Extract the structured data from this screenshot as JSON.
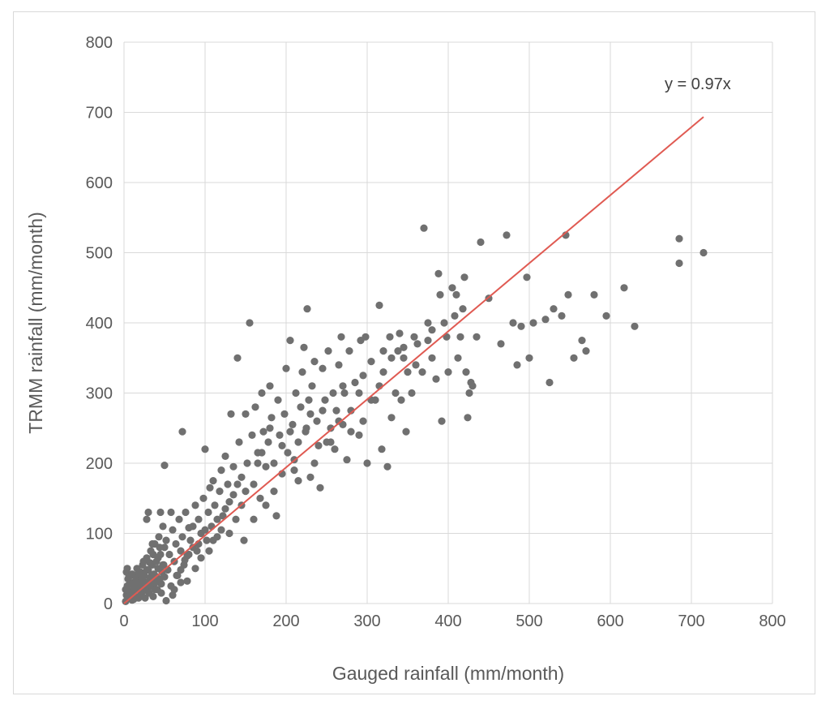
{
  "chart_data": {
    "type": "scatter",
    "title": "",
    "xlabel": "Gauged rainfall (mm/month)",
    "ylabel": "TRMM rainfall (mm/month)",
    "xlim": [
      0,
      800
    ],
    "ylim": [
      0,
      800
    ],
    "xticks": [
      "0",
      "100",
      "200",
      "300",
      "400",
      "500",
      "600",
      "700",
      "800"
    ],
    "yticks": [
      "0",
      "100",
      "200",
      "300",
      "400",
      "500",
      "600",
      "700",
      "800"
    ],
    "grid": true,
    "legend": "none",
    "point_color": "#707070",
    "trendline": {
      "label": "y = 0.97x",
      "slope": 0.97,
      "x_range": [
        0,
        715
      ],
      "color": "#e05a52"
    },
    "points": [
      [
        2,
        3
      ],
      [
        3,
        12
      ],
      [
        4,
        25
      ],
      [
        5,
        35
      ],
      [
        3,
        45
      ],
      [
        6,
        8
      ],
      [
        7,
        18
      ],
      [
        8,
        28
      ],
      [
        9,
        40
      ],
      [
        10,
        5
      ],
      [
        11,
        15
      ],
      [
        12,
        30
      ],
      [
        13,
        22
      ],
      [
        14,
        10
      ],
      [
        15,
        38
      ],
      [
        16,
        50
      ],
      [
        17,
        20
      ],
      [
        18,
        8
      ],
      [
        19,
        33
      ],
      [
        20,
        45
      ],
      [
        21,
        12
      ],
      [
        22,
        28
      ],
      [
        23,
        55
      ],
      [
        24,
        18
      ],
      [
        25,
        40
      ],
      [
        26,
        8
      ],
      [
        27,
        30
      ],
      [
        28,
        65
      ],
      [
        29,
        22
      ],
      [
        30,
        48
      ],
      [
        31,
        15
      ],
      [
        32,
        35
      ],
      [
        33,
        75
      ],
      [
        34,
        25
      ],
      [
        35,
        55
      ],
      [
        36,
        10
      ],
      [
        37,
        42
      ],
      [
        38,
        85
      ],
      [
        39,
        30
      ],
      [
        40,
        60
      ],
      [
        41,
        20
      ],
      [
        42,
        50
      ],
      [
        43,
        95
      ],
      [
        44,
        35
      ],
      [
        45,
        70
      ],
      [
        46,
        15
      ],
      [
        47,
        45
      ],
      [
        48,
        110
      ],
      [
        49,
        55
      ],
      [
        50,
        80
      ],
      [
        2,
        20
      ],
      [
        4,
        50
      ],
      [
        6,
        38
      ],
      [
        8,
        15
      ],
      [
        10,
        42
      ],
      [
        12,
        6
      ],
      [
        14,
        30
      ],
      [
        16,
        26
      ],
      [
        18,
        44
      ],
      [
        20,
        18
      ],
      [
        22,
        36
      ],
      [
        24,
        60
      ],
      [
        26,
        22
      ],
      [
        28,
        48
      ],
      [
        30,
        30
      ],
      [
        32,
        58
      ],
      [
        34,
        40
      ],
      [
        36,
        70
      ],
      [
        38,
        20
      ],
      [
        40,
        38
      ],
      [
        42,
        65
      ],
      [
        44,
        80
      ],
      [
        46,
        28
      ],
      [
        48,
        55
      ],
      [
        50,
        38
      ],
      [
        52,
        90
      ],
      [
        54,
        48
      ],
      [
        56,
        70
      ],
      [
        58,
        25
      ],
      [
        60,
        105
      ],
      [
        62,
        60
      ],
      [
        64,
        85
      ],
      [
        66,
        40
      ],
      [
        68,
        120
      ],
      [
        70,
        75
      ],
      [
        72,
        95
      ],
      [
        74,
        55
      ],
      [
        76,
        130
      ],
      [
        78,
        68
      ],
      [
        80,
        108
      ],
      [
        28,
        120
      ],
      [
        30,
        130
      ],
      [
        35,
        85
      ],
      [
        45,
        130
      ],
      [
        52,
        4
      ],
      [
        58,
        130
      ],
      [
        50,
        197
      ],
      [
        72,
        245
      ],
      [
        62,
        20
      ],
      [
        70,
        30
      ],
      [
        78,
        32
      ],
      [
        82,
        90
      ],
      [
        85,
        110
      ],
      [
        88,
        140
      ],
      [
        90,
        75
      ],
      [
        92,
        120
      ],
      [
        95,
        100
      ],
      [
        98,
        150
      ],
      [
        100,
        220
      ],
      [
        102,
        90
      ],
      [
        104,
        130
      ],
      [
        106,
        165
      ],
      [
        108,
        110
      ],
      [
        110,
        175
      ],
      [
        112,
        140
      ],
      [
        115,
        95
      ],
      [
        118,
        160
      ],
      [
        120,
        190
      ],
      [
        122,
        125
      ],
      [
        125,
        210
      ],
      [
        128,
        170
      ],
      [
        130,
        145
      ],
      [
        132,
        270
      ],
      [
        135,
        195
      ],
      [
        138,
        120
      ],
      [
        140,
        350
      ],
      [
        142,
        230
      ],
      [
        145,
        180
      ],
      [
        148,
        90
      ],
      [
        150,
        270
      ],
      [
        152,
        200
      ],
      [
        155,
        400
      ],
      [
        158,
        240
      ],
      [
        160,
        170
      ],
      [
        162,
        280
      ],
      [
        165,
        215
      ],
      [
        168,
        150
      ],
      [
        170,
        300
      ],
      [
        172,
        245
      ],
      [
        175,
        195
      ],
      [
        178,
        230
      ],
      [
        180,
        310
      ],
      [
        182,
        265
      ],
      [
        185,
        200
      ],
      [
        188,
        125
      ],
      [
        190,
        290
      ],
      [
        192,
        240
      ],
      [
        195,
        185
      ],
      [
        198,
        270
      ],
      [
        200,
        335
      ],
      [
        202,
        215
      ],
      [
        205,
        375
      ],
      [
        208,
        255
      ],
      [
        210,
        190
      ],
      [
        212,
        300
      ],
      [
        215,
        175
      ],
      [
        218,
        280
      ],
      [
        220,
        330
      ],
      [
        222,
        365
      ],
      [
        224,
        245
      ],
      [
        226,
        420
      ],
      [
        228,
        290
      ],
      [
        230,
        180
      ],
      [
        232,
        310
      ],
      [
        235,
        345
      ],
      [
        238,
        260
      ],
      [
        240,
        225
      ],
      [
        242,
        165
      ],
      [
        245,
        335
      ],
      [
        248,
        290
      ],
      [
        250,
        230
      ],
      [
        252,
        360
      ],
      [
        255,
        250
      ],
      [
        258,
        300
      ],
      [
        260,
        220
      ],
      [
        262,
        275
      ],
      [
        265,
        340
      ],
      [
        268,
        380
      ],
      [
        270,
        255
      ],
      [
        272,
        300
      ],
      [
        275,
        205
      ],
      [
        278,
        360
      ],
      [
        280,
        245
      ],
      [
        285,
        315
      ],
      [
        290,
        240
      ],
      [
        292,
        375
      ],
      [
        295,
        260
      ],
      [
        298,
        380
      ],
      [
        300,
        200
      ],
      [
        305,
        345
      ],
      [
        310,
        290
      ],
      [
        315,
        425
      ],
      [
        318,
        220
      ],
      [
        320,
        360
      ],
      [
        325,
        195
      ],
      [
        328,
        380
      ],
      [
        330,
        265
      ],
      [
        335,
        300
      ],
      [
        338,
        360
      ],
      [
        340,
        385
      ],
      [
        342,
        290
      ],
      [
        345,
        350
      ],
      [
        348,
        245
      ],
      [
        350,
        330
      ],
      [
        355,
        300
      ],
      [
        358,
        380
      ],
      [
        362,
        370
      ],
      [
        368,
        330
      ],
      [
        370,
        535
      ],
      [
        375,
        400
      ],
      [
        380,
        350
      ],
      [
        385,
        320
      ],
      [
        388,
        470
      ],
      [
        390,
        440
      ],
      [
        392,
        260
      ],
      [
        395,
        400
      ],
      [
        398,
        380
      ],
      [
        400,
        330
      ],
      [
        405,
        450
      ],
      [
        408,
        410
      ],
      [
        410,
        440
      ],
      [
        412,
        350
      ],
      [
        415,
        380
      ],
      [
        418,
        420
      ],
      [
        420,
        465
      ],
      [
        422,
        330
      ],
      [
        424,
        265
      ],
      [
        426,
        300
      ],
      [
        428,
        315
      ],
      [
        430,
        310
      ],
      [
        435,
        380
      ],
      [
        440,
        515
      ],
      [
        450,
        435
      ],
      [
        465,
        370
      ],
      [
        472,
        525
      ],
      [
        480,
        400
      ],
      [
        485,
        340
      ],
      [
        490,
        395
      ],
      [
        497,
        465
      ],
      [
        500,
        350
      ],
      [
        505,
        400
      ],
      [
        520,
        405
      ],
      [
        525,
        315
      ],
      [
        530,
        420
      ],
      [
        540,
        410
      ],
      [
        545,
        525
      ],
      [
        548,
        440
      ],
      [
        555,
        350
      ],
      [
        565,
        375
      ],
      [
        570,
        360
      ],
      [
        580,
        440
      ],
      [
        595,
        410
      ],
      [
        617,
        450
      ],
      [
        630,
        395
      ],
      [
        685,
        520
      ],
      [
        685,
        485
      ],
      [
        715,
        500
      ],
      [
        60,
        12
      ],
      [
        65,
        40
      ],
      [
        70,
        48
      ],
      [
        75,
        62
      ],
      [
        80,
        70
      ],
      [
        85,
        80
      ],
      [
        88,
        50
      ],
      [
        92,
        85
      ],
      [
        95,
        65
      ],
      [
        100,
        105
      ],
      [
        105,
        75
      ],
      [
        110,
        90
      ],
      [
        115,
        120
      ],
      [
        120,
        105
      ],
      [
        125,
        135
      ],
      [
        130,
        100
      ],
      [
        135,
        155
      ],
      [
        140,
        170
      ],
      [
        145,
        140
      ],
      [
        150,
        160
      ],
      [
        160,
        120
      ],
      [
        165,
        200
      ],
      [
        170,
        215
      ],
      [
        175,
        140
      ],
      [
        180,
        250
      ],
      [
        185,
        160
      ],
      [
        195,
        225
      ],
      [
        205,
        245
      ],
      [
        210,
        205
      ],
      [
        215,
        230
      ],
      [
        225,
        250
      ],
      [
        230,
        270
      ],
      [
        235,
        200
      ],
      [
        245,
        275
      ],
      [
        255,
        230
      ],
      [
        265,
        260
      ],
      [
        270,
        310
      ],
      [
        280,
        275
      ],
      [
        290,
        300
      ],
      [
        295,
        325
      ],
      [
        305,
        290
      ],
      [
        315,
        310
      ],
      [
        320,
        330
      ],
      [
        330,
        350
      ],
      [
        345,
        365
      ],
      [
        360,
        340
      ],
      [
        375,
        375
      ],
      [
        380,
        390
      ]
    ]
  }
}
